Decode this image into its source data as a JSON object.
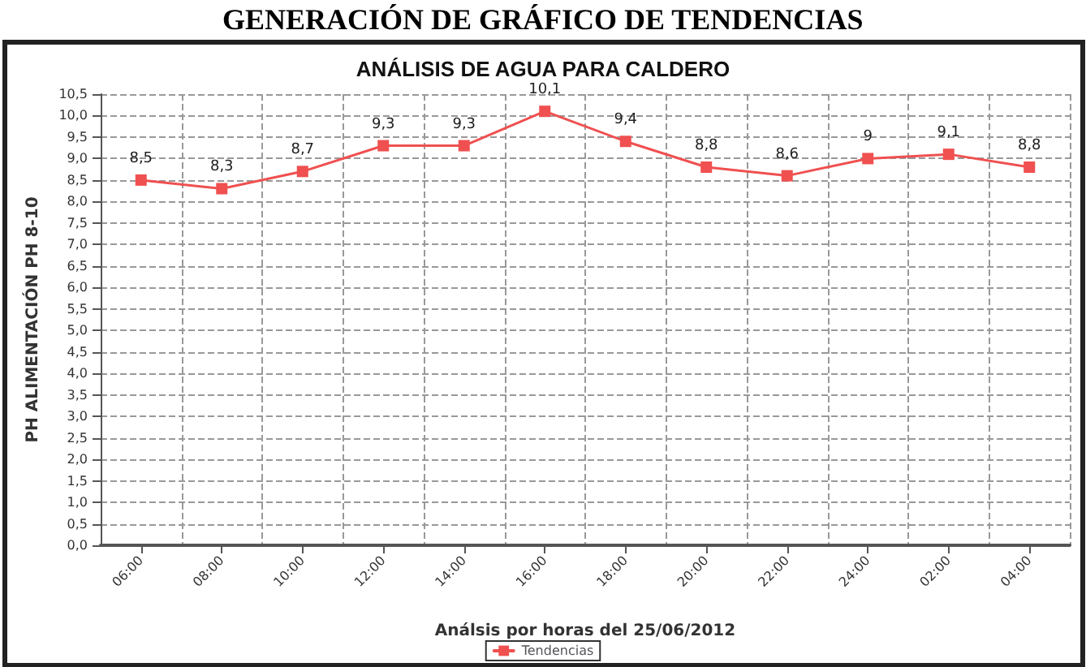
{
  "chart_data": {
    "type": "line",
    "title": "ANÁLISIS DE AGUA PARA CALDERO",
    "xlabel": "Análsis por horas del 25/06/2012",
    "ylabel": "PH ALIMENTACIÓN PH 8-10",
    "annotations": [
      "GENERACIÓN DE GRÁFICO DE TENDENCIAS"
    ],
    "categories": [
      "06:00",
      "08:00",
      "10:00",
      "12:00",
      "14:00",
      "16:00",
      "18:00",
      "20:00",
      "22:00",
      "24:00",
      "02:00",
      "04:00"
    ],
    "series": [
      {
        "name": "Tendencias",
        "color": "#f05050",
        "values": [
          8.5,
          8.3,
          8.7,
          9.3,
          9.3,
          10.1,
          9.4,
          8.8,
          8.6,
          9,
          9.1,
          8.8
        ],
        "value_labels": [
          "8,5",
          "8,3",
          "8,7",
          "9,3",
          "9,3",
          "10,1",
          "9,4",
          "8,8",
          "8,6",
          "9",
          "9,1",
          "8,8"
        ]
      }
    ],
    "ylim": [
      0,
      10.5
    ],
    "yticks": [
      {
        "value": 0,
        "label": "0,0"
      },
      {
        "value": 0.5,
        "label": "0,5"
      },
      {
        "value": 1,
        "label": "1,0"
      },
      {
        "value": 1.5,
        "label": "1,5"
      },
      {
        "value": 2,
        "label": "2,0"
      },
      {
        "value": 2.5,
        "label": "2,5"
      },
      {
        "value": 3,
        "label": "3,0"
      },
      {
        "value": 3.5,
        "label": "3,5"
      },
      {
        "value": 4,
        "label": "4,0"
      },
      {
        "value": 4.5,
        "label": "4,5"
      },
      {
        "value": 5,
        "label": "5,0"
      },
      {
        "value": 5.5,
        "label": "5,5"
      },
      {
        "value": 6,
        "label": "6,0"
      },
      {
        "value": 6.5,
        "label": "6,5"
      },
      {
        "value": 7,
        "label": "7,0"
      },
      {
        "value": 7.5,
        "label": "7,5"
      },
      {
        "value": 8,
        "label": "8,0"
      },
      {
        "value": 8.5,
        "label": "8,5"
      },
      {
        "value": 9,
        "label": "9,0"
      },
      {
        "value": 9.5,
        "label": "9,5"
      },
      {
        "value": 10,
        "label": "10,0"
      },
      {
        "value": 10.5,
        "label": "10,5"
      }
    ],
    "grid": true,
    "legend": "bottom",
    "marker": "square",
    "line_style": "solid"
  }
}
